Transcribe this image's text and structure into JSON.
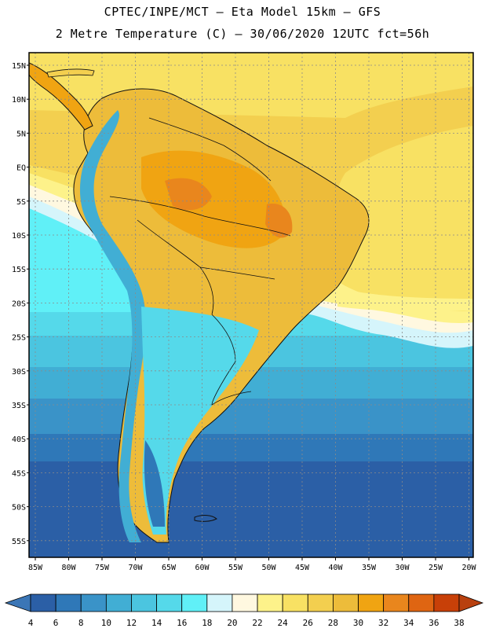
{
  "header": {
    "line1": "CPTEC/INPE/MCT –  Eta Model 15km – GFS",
    "line2": "2 Metre Temperature (C) – 30/06/2020 12UTC fct=56h"
  },
  "axes": {
    "lat_labels": [
      "15N",
      "10N",
      "5N",
      "EQ",
      "5S",
      "10S",
      "15S",
      "20S",
      "25S",
      "30S",
      "35S",
      "40S",
      "45S",
      "50S",
      "55S"
    ],
    "lon_labels": [
      "85W",
      "80W",
      "75W",
      "70W",
      "65W",
      "60W",
      "55W",
      "50W",
      "45W",
      "40W",
      "35W",
      "30W",
      "25W",
      "20W"
    ]
  },
  "colorbar": {
    "labels": [
      "4",
      "6",
      "8",
      "10",
      "12",
      "14",
      "16",
      "18",
      "20",
      "22",
      "24",
      "26",
      "28",
      "30",
      "32",
      "34",
      "36",
      "38"
    ],
    "colors": [
      "#2b5fa6",
      "#2f78b8",
      "#3a93c8",
      "#41aed4",
      "#4bc5e0",
      "#55d9ea",
      "#60f0f7",
      "#d5f5fb",
      "#fff8e0",
      "#fdf28a",
      "#f8e163",
      "#f3cf4f",
      "#edbc3a",
      "#f0a412",
      "#e9861d",
      "#df6512",
      "#c84008"
    ],
    "left_arrow_color": "#3b76b6",
    "right_arrow_color": "#b8400f"
  },
  "colors": {
    "ocean_cold": "#2b5fa6",
    "ocean_cool": "#3a93c8",
    "ocean_mid": "#4bc5e0",
    "ocean_warm": "#60f0f7",
    "tropic_sea": "#f3cf4f",
    "land_hot": "#edbc3a"
  }
}
